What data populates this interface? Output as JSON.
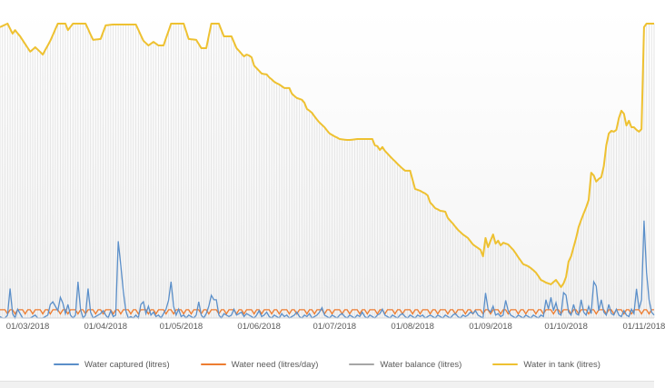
{
  "chart_data": {
    "type": "line",
    "title": "",
    "xlabel": "",
    "ylabel": "",
    "x_axis": {
      "start_date": "18/02/2018",
      "end_date": "05/11/2018",
      "step": "daily",
      "n_points": 261,
      "tick_labels": [
        "01/03/2018",
        "01/04/2018",
        "01/05/2018",
        "01/06/2018",
        "01/07/2018",
        "01/08/2018",
        "01/09/2018",
        "01/10/2018",
        "01/11/2018"
      ],
      "tick_day_indices": [
        11,
        42,
        72,
        103,
        133,
        164,
        195,
        225,
        256
      ]
    },
    "ylim": [
      0,
      10500
    ],
    "grid": "daily vertical needles under tank line only; no horizontal gridlines; no visible y-axis labels",
    "legend_position": "bottom-center",
    "series": [
      {
        "name": "Water captured (litres)",
        "color": "#5B8FC9",
        "style": "thin line, spiky, near zero baseline",
        "values": [
          50,
          0,
          0,
          100,
          1000,
          150,
          0,
          300,
          150,
          0,
          0,
          0,
          0,
          50,
          100,
          0,
          0,
          0,
          50,
          100,
          460,
          550,
          400,
          250,
          700,
          500,
          150,
          460,
          100,
          0,
          100,
          1230,
          300,
          0,
          100,
          1000,
          200,
          0,
          50,
          100,
          150,
          250,
          100,
          0,
          250,
          50,
          100,
          2600,
          1800,
          920,
          250,
          0,
          50,
          0,
          100,
          0,
          460,
          550,
          150,
          400,
          100,
          200,
          50,
          100,
          0,
          150,
          300,
          600,
          1230,
          400,
          100,
          300,
          50,
          100,
          0,
          100,
          50,
          0,
          100,
          550,
          100,
          0,
          150,
          400,
          770,
          620,
          620,
          100,
          0,
          150,
          100,
          50,
          100,
          300,
          100,
          150,
          200,
          50,
          150,
          100,
          50,
          0,
          100,
          250,
          50,
          100,
          200,
          50,
          0,
          100,
          50,
          0,
          150,
          50,
          100,
          0,
          50,
          100,
          200,
          50,
          0,
          100,
          50,
          150,
          0,
          50,
          100,
          200,
          350,
          100,
          50,
          0,
          100,
          50,
          0,
          100,
          150,
          50,
          0,
          100,
          50,
          0,
          100,
          50,
          200,
          50,
          0,
          100,
          50,
          0,
          100,
          150,
          300,
          100,
          50,
          0,
          100,
          50,
          0,
          100,
          150,
          50,
          0,
          100,
          50,
          0,
          100,
          50,
          100,
          0,
          50,
          100,
          50,
          0,
          100,
          50,
          0,
          100,
          50,
          0,
          100,
          150,
          50,
          0,
          100,
          50,
          100,
          200,
          150,
          250,
          100,
          50,
          0,
          850,
          300,
          200,
          400,
          100,
          150,
          50,
          100,
          600,
          250,
          100,
          50,
          0,
          100,
          50,
          0,
          100,
          50,
          0,
          100,
          50,
          0,
          100,
          50,
          620,
          300,
          700,
          250,
          520,
          150,
          100,
          860,
          770,
          200,
          100,
          460,
          150,
          100,
          620,
          200,
          100,
          400,
          150,
          1230,
          1080,
          250,
          620,
          200,
          100,
          460,
          150,
          100,
          300,
          100,
          50,
          250,
          100,
          50,
          300,
          150,
          990,
          300,
          620,
          3300,
          1540,
          620,
          200,
          100
        ]
      },
      {
        "name": "Water need (litres/day)",
        "color": "#ED7D31",
        "style": "low square wave along baseline",
        "weekly_pattern": [
          280,
          280,
          280,
          140,
          280,
          280,
          140
        ]
      },
      {
        "name": "Water balance (litres)",
        "color": "#A6A6A6",
        "style": "rendered as dense vertical gray needles from zero up to the tank level, one per day",
        "values_equal_series": "Water in tank (litres)"
      },
      {
        "name": "Water in tank (litres)",
        "color": "#EEC131",
        "style": "thick line, capped at tank capacity ~10000",
        "values": [
          9850,
          9890,
          9930,
          9970,
          9800,
          9630,
          9750,
          9640,
          9540,
          9410,
          9280,
          9150,
          9020,
          9090,
          9170,
          9090,
          9010,
          8920,
          9080,
          9230,
          9390,
          9580,
          9780,
          9970,
          9970,
          9970,
          9970,
          9750,
          9860,
          9970,
          9970,
          9970,
          9970,
          9970,
          9970,
          9790,
          9600,
          9420,
          9430,
          9440,
          9450,
          9680,
          9910,
          9920,
          9930,
          9940,
          9940,
          9940,
          9940,
          9940,
          9940,
          9940,
          9940,
          9940,
          9940,
          9760,
          9570,
          9390,
          9310,
          9230,
          9290,
          9350,
          9290,
          9230,
          9230,
          9230,
          9480,
          9720,
          9970,
          9970,
          9970,
          9970,
          9970,
          9970,
          9710,
          9450,
          9440,
          9430,
          9420,
          9280,
          9140,
          9140,
          9140,
          9560,
          9970,
          9970,
          9970,
          9970,
          9750,
          9540,
          9540,
          9540,
          9540,
          9340,
          9140,
          9050,
          8950,
          8860,
          8920,
          8890,
          8830,
          8550,
          8460,
          8370,
          8280,
          8260,
          8250,
          8150,
          8080,
          8000,
          7950,
          7910,
          7850,
          7790,
          7790,
          7790,
          7600,
          7520,
          7450,
          7420,
          7390,
          7290,
          7080,
          7020,
          6950,
          6830,
          6720,
          6620,
          6540,
          6460,
          6350,
          6250,
          6200,
          6150,
          6110,
          6060,
          6050,
          6040,
          6030,
          6030,
          6040,
          6050,
          6060,
          6060,
          6060,
          6060,
          6060,
          6060,
          6060,
          5850,
          5820,
          5690,
          5790,
          5660,
          5570,
          5480,
          5390,
          5310,
          5220,
          5140,
          5060,
          4990,
          4990,
          4990,
          4680,
          4370,
          4340,
          4310,
          4260,
          4220,
          4150,
          3910,
          3820,
          3720,
          3680,
          3630,
          3620,
          3600,
          3390,
          3290,
          3200,
          3090,
          2990,
          2910,
          2830,
          2770,
          2710,
          2600,
          2490,
          2430,
          2370,
          2310,
          2090,
          2710,
          2400,
          2620,
          2830,
          2520,
          2620,
          2460,
          2550,
          2520,
          2490,
          2400,
          2310,
          2190,
          2060,
          1940,
          1820,
          1790,
          1750,
          1690,
          1620,
          1540,
          1420,
          1290,
          1250,
          1200,
          1170,
          1140,
          1220,
          1290,
          1170,
          1050,
          1170,
          1390,
          1910,
          2090,
          2400,
          2710,
          3080,
          3320,
          3540,
          3750,
          4000,
          4920,
          4830,
          4620,
          4710,
          4770,
          5140,
          5850,
          6250,
          6340,
          6310,
          6370,
          6770,
          7020,
          6920,
          6520,
          6680,
          6460,
          6460,
          6370,
          6310,
          6400,
          9850,
          9970,
          9970,
          9970,
          9970
        ]
      }
    ]
  },
  "style": {
    "needle_color": "#E3E3E3",
    "axis_line_color": "#D9D9D9",
    "text_color": "#595959",
    "plot_bg_top": "#ffffff",
    "plot_bg_bottom": "#f4f4f4"
  },
  "legend": {
    "items": [
      {
        "label": "Water captured (litres)",
        "color": "#5B8FC9"
      },
      {
        "label": "Water need (litres/day)",
        "color": "#ED7D31"
      },
      {
        "label": "Water balance (litres)",
        "color": "#A6A6A6"
      },
      {
        "label": "Water in tank (litres)",
        "color": "#EEC131"
      }
    ]
  }
}
